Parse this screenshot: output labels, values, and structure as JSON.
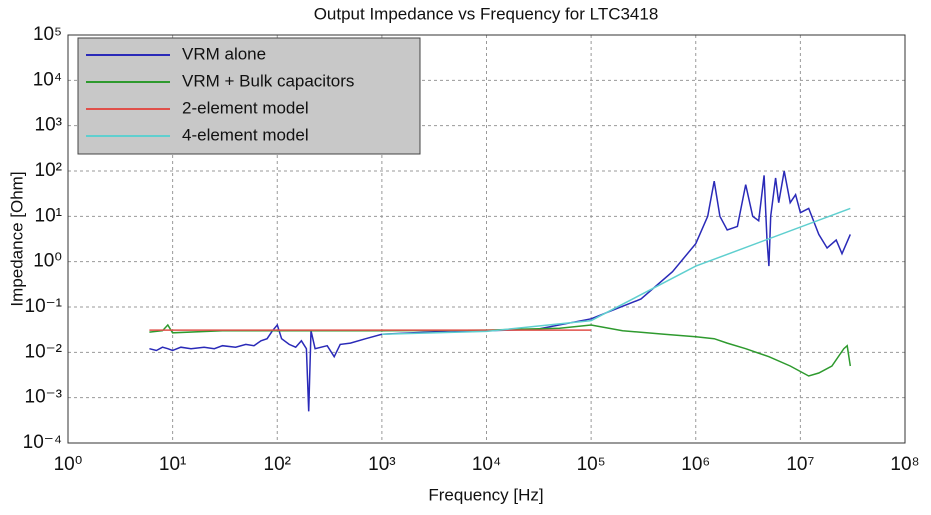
{
  "chart_data": {
    "type": "line",
    "title": "Output Impedance vs Frequency for LTC3418",
    "xlabel": "Frequency [Hz]",
    "ylabel": "Impedance [Ohm]",
    "xscale": "log",
    "yscale": "log",
    "grid": true,
    "legend": "upper left",
    "xlim": [
      1,
      100000000
    ],
    "ylim": [
      0.0001,
      100000
    ],
    "xticks": [
      {
        "value": 1,
        "label": "10⁰"
      },
      {
        "value": 10,
        "label": "10¹"
      },
      {
        "value": 100,
        "label": "10²"
      },
      {
        "value": 1000,
        "label": "10³"
      },
      {
        "value": 10000,
        "label": "10⁴"
      },
      {
        "value": 100000,
        "label": "10⁵"
      },
      {
        "value": 1000000,
        "label": "10⁶"
      },
      {
        "value": 10000000,
        "label": "10⁷"
      },
      {
        "value": 100000000,
        "label": "10⁸"
      }
    ],
    "yticks": [
      {
        "value": 0.0001,
        "label": "10⁻⁴"
      },
      {
        "value": 0.001,
        "label": "10⁻³"
      },
      {
        "value": 0.01,
        "label": "10⁻²"
      },
      {
        "value": 0.1,
        "label": "10⁻¹"
      },
      {
        "value": 1,
        "label": "10⁰"
      },
      {
        "value": 10,
        "label": "10¹"
      },
      {
        "value": 100,
        "label": "10²"
      },
      {
        "value": 1000,
        "label": "10³"
      },
      {
        "value": 10000,
        "label": "10⁴"
      },
      {
        "value": 100000,
        "label": "10⁵"
      }
    ],
    "series": [
      {
        "name": "VRM alone",
        "color": "#2a2ab8",
        "x": [
          6,
          7,
          8,
          9,
          10,
          12,
          15,
          20,
          25,
          30,
          40,
          50,
          60,
          70,
          80,
          90,
          100,
          110,
          130,
          150,
          170,
          190,
          200,
          210,
          230,
          300,
          350,
          400,
          500,
          700,
          1000,
          2000,
          5000,
          10000,
          30000,
          100000,
          300000,
          600000,
          1000000,
          1300000,
          1500000,
          1700000,
          2000000,
          2500000,
          3000000,
          3500000,
          4000000,
          4500000,
          4800000,
          5000000,
          5200000,
          5800000,
          6200000,
          7000000,
          8000000,
          9000000,
          10000000,
          12000000,
          15000000,
          18000000,
          22000000,
          25000000,
          30000000
        ],
        "values": [
          0.012,
          0.011,
          0.013,
          0.012,
          0.011,
          0.013,
          0.012,
          0.013,
          0.012,
          0.014,
          0.013,
          0.015,
          0.014,
          0.018,
          0.02,
          0.03,
          0.04,
          0.02,
          0.015,
          0.013,
          0.018,
          0.012,
          0.0005,
          0.03,
          0.012,
          0.014,
          0.008,
          0.015,
          0.016,
          0.02,
          0.025,
          0.027,
          0.03,
          0.03,
          0.032,
          0.055,
          0.15,
          0.6,
          2.5,
          10,
          60,
          10,
          5,
          6,
          50,
          10,
          8,
          80,
          3,
          0.8,
          10,
          70,
          20,
          100,
          20,
          30,
          12,
          15,
          4,
          2,
          3,
          1.5,
          4
        ]
      },
      {
        "name": "VRM + Bulk capacitors",
        "color": "#2e9a2e",
        "x": [
          6,
          8,
          9,
          10,
          30,
          1000,
          10000,
          50000,
          100000,
          200000,
          500000,
          1000000,
          1500000,
          2000000,
          3000000,
          5000000,
          8000000,
          12000000,
          15000000,
          20000000,
          26000000,
          28000000,
          30000000
        ],
        "values": [
          0.028,
          0.03,
          0.04,
          0.027,
          0.03,
          0.03,
          0.031,
          0.034,
          0.04,
          0.03,
          0.025,
          0.022,
          0.02,
          0.016,
          0.012,
          0.008,
          0.005,
          0.003,
          0.0035,
          0.005,
          0.012,
          0.014,
          0.005
        ]
      },
      {
        "name": "2-element model",
        "color": "#e0504a",
        "x": [
          6,
          100000
        ],
        "values": [
          0.031,
          0.031
        ]
      },
      {
        "name": "4-element model",
        "color": "#5fcfcf",
        "x": [
          1000,
          10000,
          100000,
          1000000,
          30000000
        ],
        "values": [
          0.025,
          0.029,
          0.05,
          0.8,
          15
        ]
      }
    ]
  }
}
